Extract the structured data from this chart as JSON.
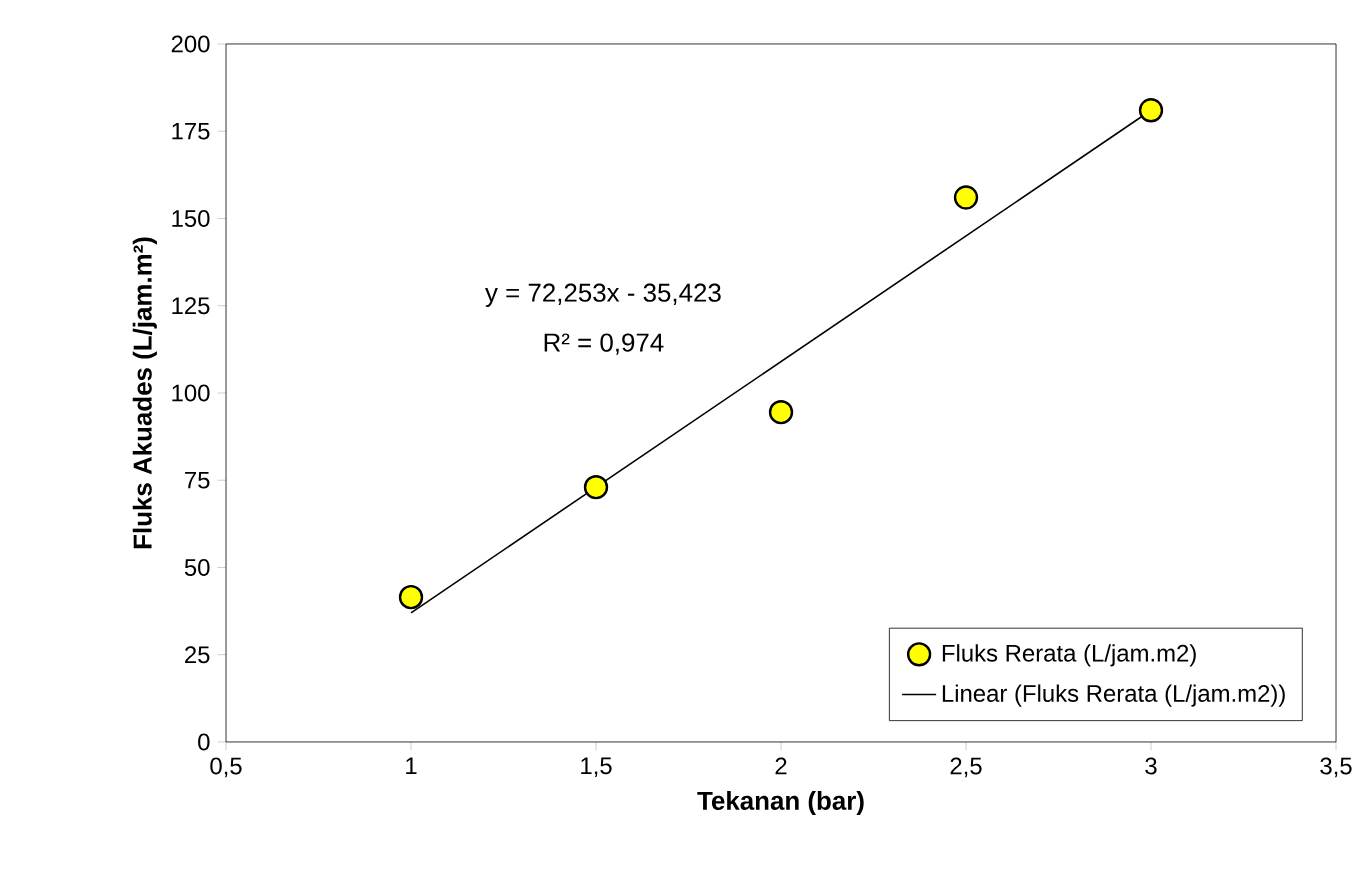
{
  "chart_data": {
    "type": "scatter",
    "xlabel": "Tekanan (bar)",
    "ylabel": "Fluks Akuades (L/jam.m²)",
    "series": [
      {
        "name": "Fluks Rerata (L/jam.m2)",
        "color": "#ffff00",
        "marker": "circle",
        "x": [
          1,
          1.5,
          2,
          2.5,
          3
        ],
        "values": [
          41.5,
          73,
          94.5,
          156,
          181
        ]
      },
      {
        "name": "Linear (Fluks Rerata (L/jam.m2))",
        "type": "line",
        "color": "#000000",
        "marker": "none",
        "x": [
          1,
          3
        ],
        "values": [
          37,
          181
        ]
      }
    ],
    "xlim": [
      0.5,
      3.5
    ],
    "xticks": [
      {
        "value": 0.5,
        "label": "0,5"
      },
      1,
      {
        "value": 1.5,
        "label": "1,5"
      },
      2,
      {
        "value": 2.5,
        "label": "2,5"
      },
      3,
      {
        "value": 3.5,
        "label": "3,5"
      }
    ],
    "ylim": [
      0,
      200
    ],
    "yticks": [
      0,
      25,
      50,
      75,
      100,
      125,
      150,
      175,
      200
    ],
    "legend": "bottom right",
    "annotations": [
      "y = 72,253x - 35,423",
      "R² = 0,974"
    ]
  }
}
